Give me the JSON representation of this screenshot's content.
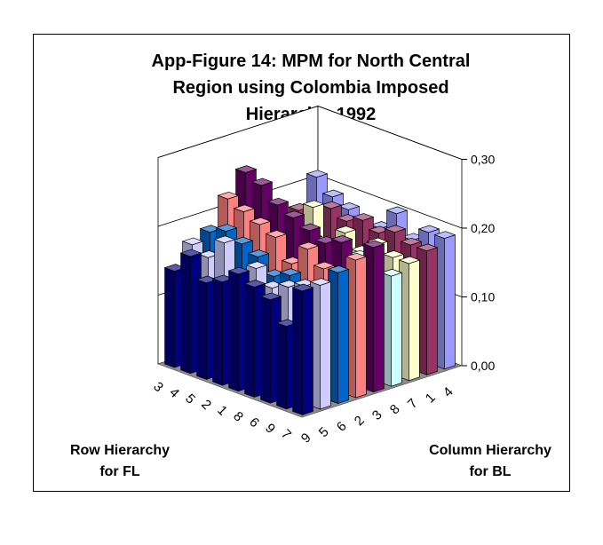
{
  "chart_data": {
    "type": "bar3d",
    "title_lines": [
      "App-Figure 14: MPM for North Central",
      "Region using Colombia Imposed",
      "Hierarchy, 1992"
    ],
    "row_axis_title": [
      "Row Hierarchy",
      "for FL"
    ],
    "col_axis_title": [
      "Column Hierarchy",
      "for BL"
    ],
    "row_labels": [
      "3",
      "4",
      "5",
      "2",
      "1",
      "8",
      "6",
      "9",
      "7"
    ],
    "col_labels": [
      "9",
      "5",
      "6",
      "2",
      "3",
      "8",
      "7",
      "1",
      "4"
    ],
    "zlim": [
      0,
      0.3
    ],
    "z_ticks": [
      "0,00",
      "0,10",
      "0,20",
      "0,30"
    ],
    "grid": true,
    "series_colors": [
      "#000080",
      "#ccccff",
      "#0066cc",
      "#ff8080",
      "#660066",
      "#ccffff",
      "#ffffcc",
      "#993366",
      "#9999ff"
    ],
    "values": [
      [
        0.14,
        0.17,
        0.18,
        0.22,
        0.25,
        0.16,
        0.14,
        0.17,
        0.21
      ],
      [
        0.17,
        0.16,
        0.19,
        0.21,
        0.24,
        0.18,
        0.16,
        0.15,
        0.19
      ],
      [
        0.14,
        0.19,
        0.18,
        0.2,
        0.22,
        0.17,
        0.2,
        0.19,
        0.18
      ],
      [
        0.15,
        0.14,
        0.17,
        0.19,
        0.21,
        0.17,
        0.15,
        0.18,
        0.16
      ],
      [
        0.17,
        0.17,
        0.15,
        0.16,
        0.2,
        0.15,
        0.18,
        0.19,
        0.17
      ],
      [
        0.16,
        0.15,
        0.16,
        0.19,
        0.19,
        0.16,
        0.16,
        0.18,
        0.2
      ],
      [
        0.15,
        0.16,
        0.15,
        0.17,
        0.2,
        0.17,
        0.18,
        0.19,
        0.17
      ],
      [
        0.12,
        0.17,
        0.16,
        0.17,
        0.18,
        0.15,
        0.17,
        0.18,
        0.19
      ],
      [
        0.18,
        0.18,
        0.19,
        0.2,
        0.21,
        0.16,
        0.17,
        0.18,
        0.19
      ]
    ]
  }
}
